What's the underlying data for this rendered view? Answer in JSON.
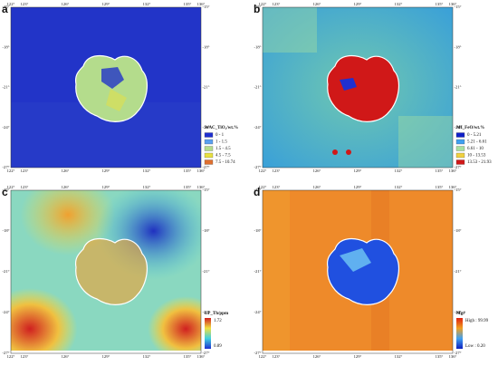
{
  "lon_ticks": [
    {
      "value": 122,
      "label": "122°"
    },
    {
      "value": 123,
      "label": "123°"
    },
    {
      "value": 126,
      "label": "126°"
    },
    {
      "value": 129,
      "label": "129°"
    },
    {
      "value": 132,
      "label": "132°"
    },
    {
      "value": 135,
      "label": "135°"
    },
    {
      "value": 136,
      "label": "136°"
    }
  ],
  "lat_ticks": [
    {
      "value": -15,
      "label": "-15°"
    },
    {
      "value": -18,
      "label": "-18°"
    },
    {
      "value": -21,
      "label": "-21°"
    },
    {
      "value": -24,
      "label": "-24°"
    },
    {
      "value": -27,
      "label": "-27°"
    }
  ],
  "panels": [
    {
      "label": "a",
      "legend_title": "WAC_TiO₂/wt.%",
      "classes": [
        {
          "label": "0 - 1",
          "color": "#1f2fd0"
        },
        {
          "label": "1 - 1.5",
          "color": "#5aa0f0"
        },
        {
          "label": "1.5 - 4.5",
          "color": "#b4dc8c"
        },
        {
          "label": "4.5 - 7.5",
          "color": "#e8e040"
        },
        {
          "label": "7.5 - 10.74",
          "color": "#e07030"
        }
      ]
    },
    {
      "label": "b",
      "legend_title": "MI_FeO/wt.%",
      "classes": [
        {
          "label": "0 - 5.21",
          "color": "#1020c8"
        },
        {
          "label": "5.21 - 6.61",
          "color": "#40a0f0"
        },
        {
          "label": "6.61 - 10",
          "color": "#a8e0a0"
        },
        {
          "label": "10 - 13.53",
          "color": "#f0d040"
        },
        {
          "label": "13.53 - 21.93",
          "color": "#d01818"
        }
      ]
    },
    {
      "label": "c",
      "legend_title": "LP_Th/ppm",
      "high": "1.72",
      "low": "0.89",
      "ramp": [
        "#d02020",
        "#f0e040",
        "#40d0e0",
        "#2030d0"
      ]
    },
    {
      "label": "d",
      "legend_title": "Mg#",
      "high": "High : 99.99",
      "low": "Low : 0.20",
      "ramp": [
        "#e02010",
        "#f0a020",
        "#40a0f0",
        "#1020c0"
      ]
    }
  ]
}
